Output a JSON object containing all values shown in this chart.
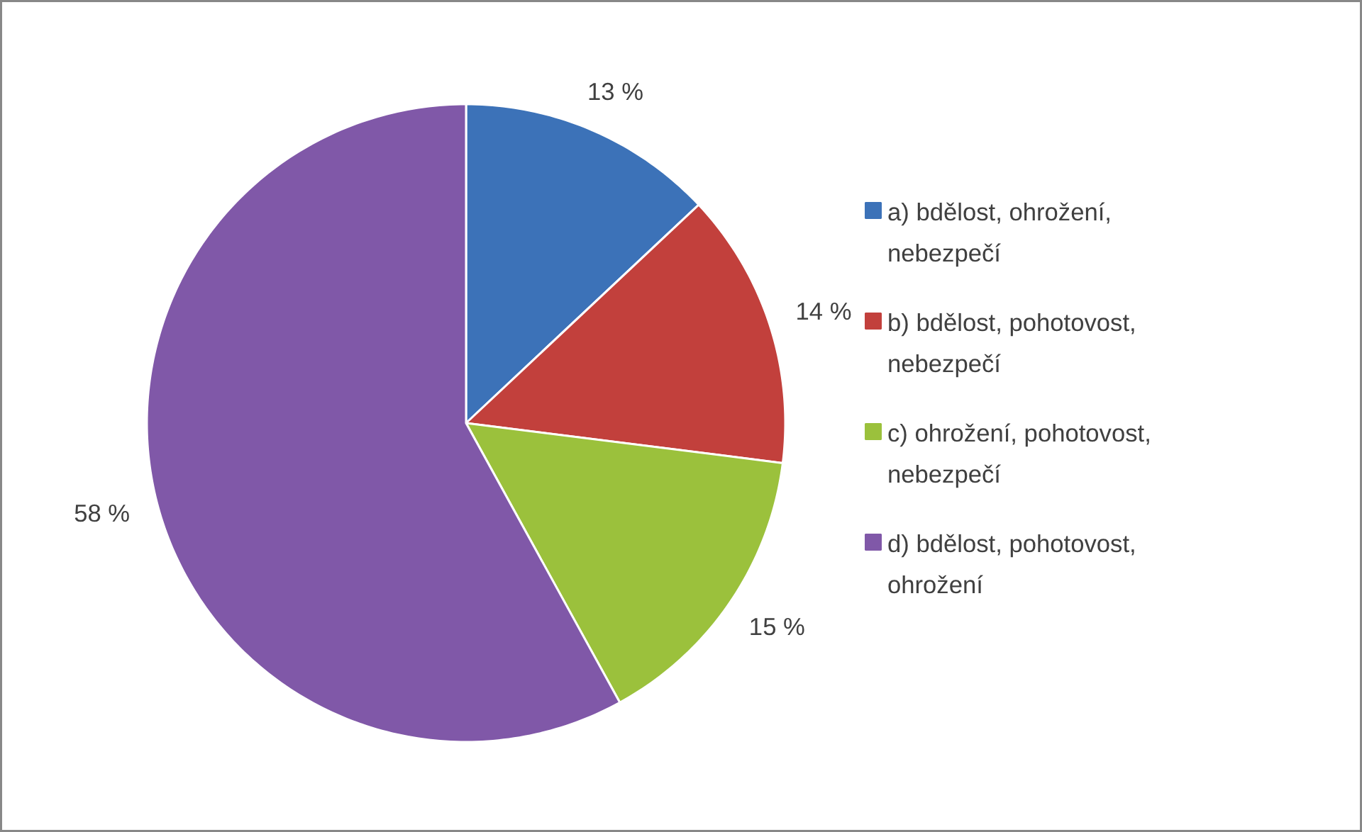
{
  "chart_data": {
    "type": "pie",
    "categories": [
      "a) bdělost, ohrožení, nebezpečí",
      "b) bdělost, pohotovost, nebezpečí",
      "c) ohrožení, pohotovost, nebezpečí",
      "d) bdělost, pohotovost, ohrožení"
    ],
    "values": [
      13,
      14,
      15,
      58
    ],
    "value_labels": [
      "13 %",
      "14 %",
      "15 %",
      "58 %"
    ],
    "colors": [
      "#3c72b8",
      "#c2403c",
      "#9bc13c",
      "#8058a8"
    ],
    "legend": "right"
  }
}
